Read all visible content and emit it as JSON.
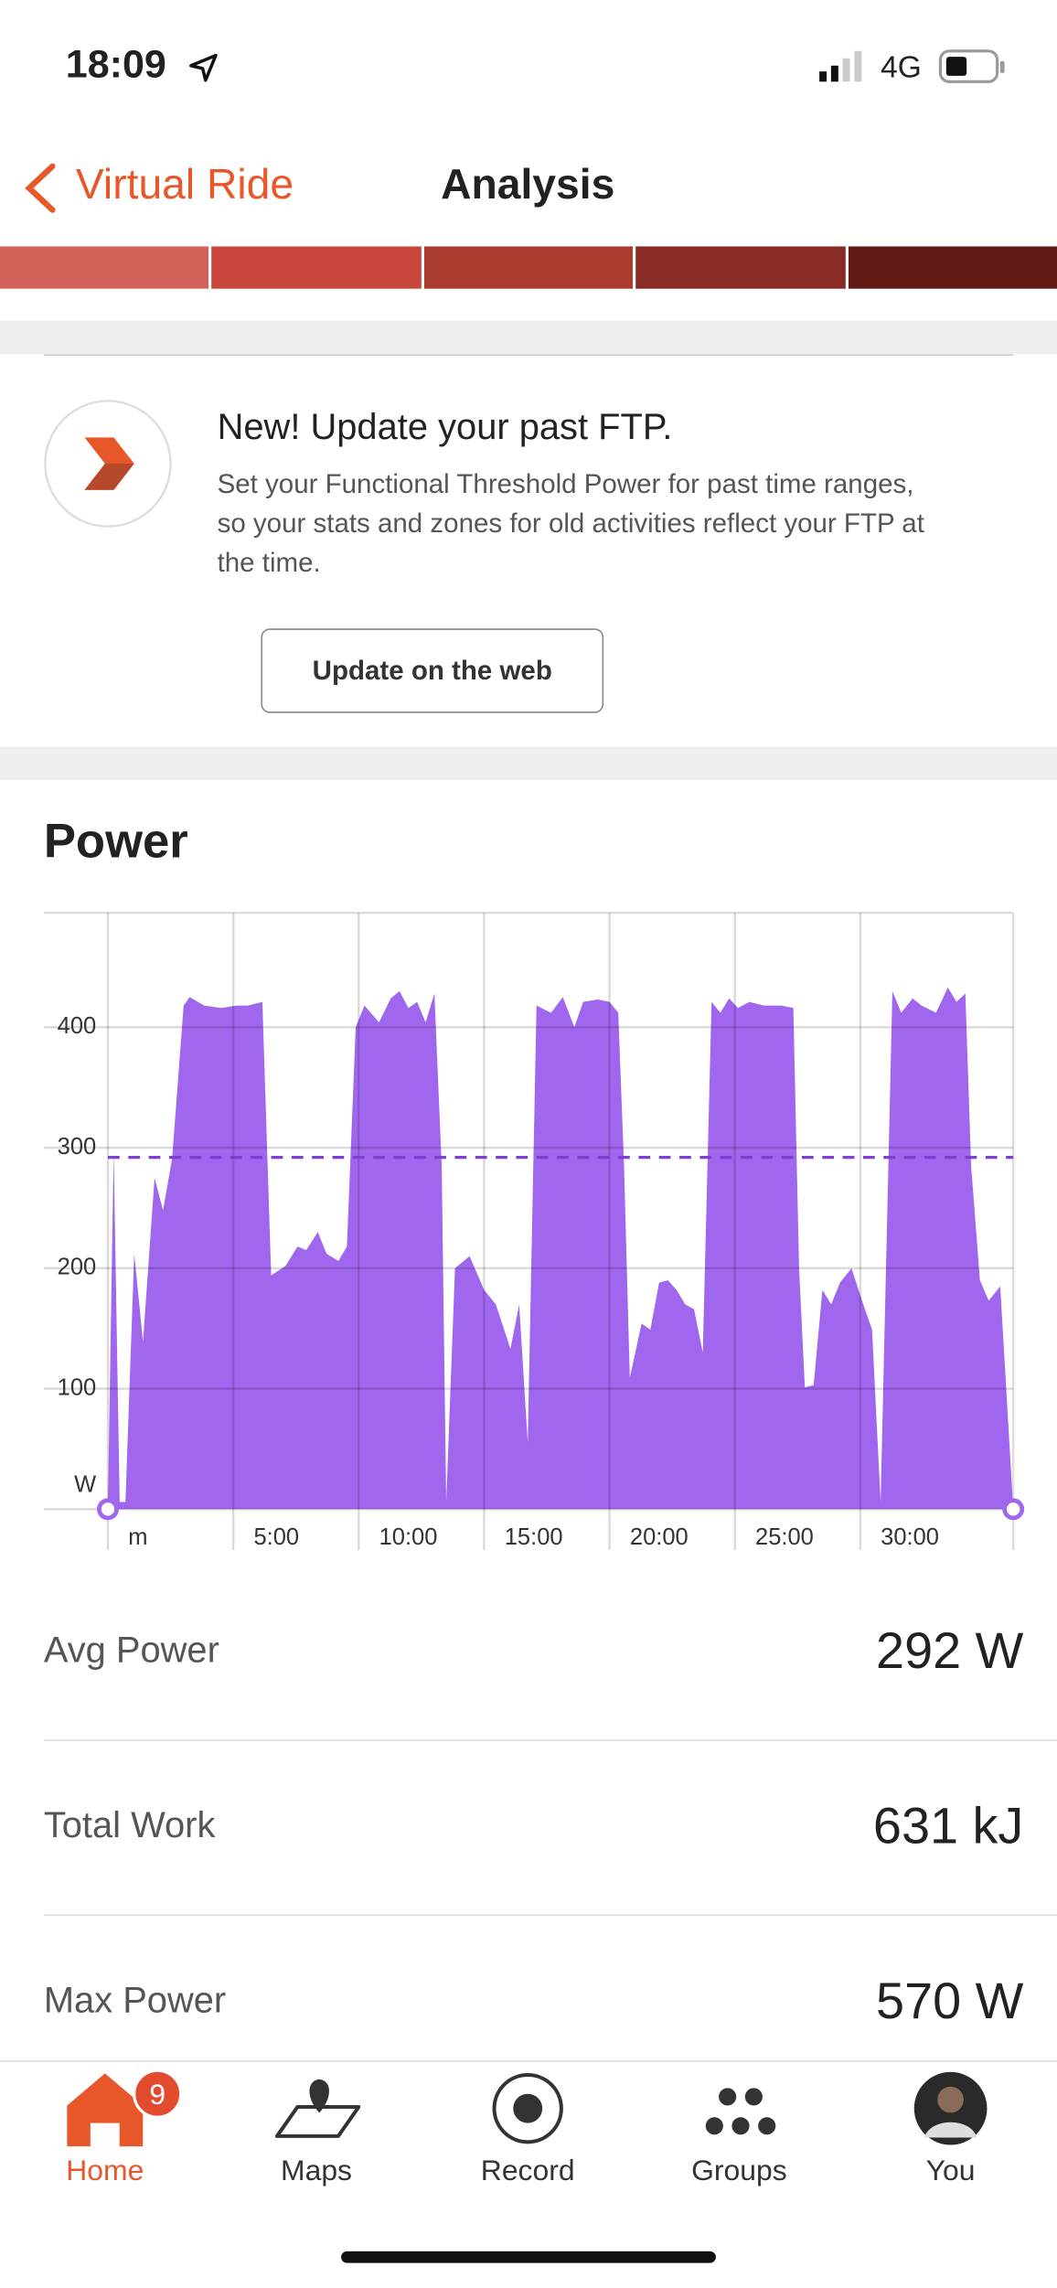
{
  "status_bar": {
    "time": "18:09",
    "network": "4G"
  },
  "nav": {
    "back": "Virtual Ride",
    "title": "Analysis"
  },
  "ftp_card": {
    "title": "New! Update your past FTP.",
    "body_lines": [
      "Set your Functional Threshold Power for past time ranges,",
      "so your stats and zones for old activities reflect your FTP at",
      "the time."
    ],
    "button": "Update on the web"
  },
  "chart_data": {
    "type": "area",
    "title": "Power",
    "color": "#a066ee",
    "x": [
      0,
      0.23,
      0.47,
      0.7,
      1.05,
      1.4,
      1.86,
      2.2,
      2.56,
      3.02,
      3.26,
      3.84,
      4.53,
      5.12,
      5.58,
      6.16,
      6.51,
      7.09,
      7.56,
      7.91,
      8.37,
      8.72,
      9.19,
      9.53,
      9.88,
      10.23,
      10.81,
      11.28,
      11.63,
      11.98,
      12.33,
      12.67,
      13.02,
      13.31,
      13.49,
      13.84,
      14.42,
      15,
      15.47,
      16.05,
      16.4,
      16.74,
      17.09,
      17.67,
      18.14,
      18.6,
      18.95,
      19.53,
      20,
      20.35,
      20.58,
      20.81,
      21.28,
      21.63,
      21.98,
      22.33,
      22.67,
      23.02,
      23.37,
      23.72,
      24.07,
      24.42,
      24.77,
      25.12,
      25.58,
      26.16,
      26.86,
      27.33,
      27.56,
      27.79,
      28.14,
      28.49,
      28.84,
      29.19,
      29.65,
      30.12,
      30.47,
      30.81,
      31.28,
      31.63,
      32.09,
      32.44,
      33.02,
      33.49,
      33.84,
      34.19,
      34.42,
      34.77,
      35.12,
      35.58,
      36.1
    ],
    "values": [
      0,
      297,
      6,
      6,
      212,
      139,
      275,
      248,
      291,
      418,
      425,
      418,
      416,
      418,
      418,
      421,
      194,
      202,
      218,
      215,
      230,
      212,
      206,
      218,
      400,
      418,
      404,
      424,
      430,
      416,
      421,
      404,
      428,
      285,
      6,
      200,
      210,
      182,
      170,
      133,
      170,
      55,
      418,
      412,
      425,
      400,
      421,
      423,
      421,
      412,
      285,
      109,
      154,
      149,
      188,
      190,
      182,
      170,
      166,
      130,
      421,
      412,
      424,
      416,
      421,
      418,
      418,
      416,
      200,
      101,
      103,
      182,
      170,
      188,
      200,
      170,
      149,
      6,
      430,
      412,
      424,
      418,
      412,
      433,
      421,
      428,
      285,
      190,
      173,
      185,
      0
    ],
    "xlim": [
      0,
      36.1
    ],
    "xticks": [
      {
        "value": 0,
        "label": "m"
      },
      {
        "value": 5,
        "label": "5:00"
      },
      {
        "value": 10,
        "label": "10:00"
      },
      {
        "value": 15,
        "label": "15:00"
      },
      {
        "value": 20,
        "label": "20:00"
      },
      {
        "value": 25,
        "label": "25:00"
      },
      {
        "value": 30,
        "label": "30:00"
      }
    ],
    "ylim": [
      0,
      495
    ],
    "yticks": [
      {
        "value": 0,
        "label": "W"
      },
      100,
      200,
      300,
      400
    ],
    "grid": true,
    "reference_line": 292
  },
  "stats": [
    {
      "label": "Avg Power",
      "value": "292 W"
    },
    {
      "label": "Total Work",
      "value": "631 kJ"
    },
    {
      "label": "Max Power",
      "value": "570 W"
    }
  ],
  "tab_bar": {
    "items": [
      {
        "label": "Home",
        "badge": 9
      },
      {
        "label": "Maps"
      },
      {
        "label": "Record"
      },
      {
        "label": "Groups"
      },
      {
        "label": "You"
      }
    ]
  }
}
